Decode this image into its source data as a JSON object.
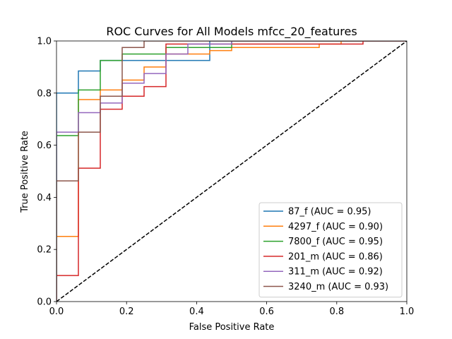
{
  "chart_data": {
    "type": "line",
    "title": "ROC Curves for All Models mfcc_20_features",
    "xlabel": "False Positive Rate",
    "ylabel": "True Positive Rate",
    "xlim": [
      0.0,
      1.0
    ],
    "ylim": [
      0.0,
      1.0
    ],
    "xticks": [
      "0.0",
      "0.2",
      "0.4",
      "0.6",
      "0.8",
      "1.0"
    ],
    "yticks": [
      "0.0",
      "0.2",
      "0.4",
      "0.6",
      "0.8",
      "1.0"
    ],
    "grid": false,
    "legend_position": "lower right",
    "series": [
      {
        "name": "87_f (AUC = 0.95)",
        "color": "#1f77b4",
        "x": [
          0.0,
          0.0,
          0.0625,
          0.0625,
          0.125,
          0.125,
          0.4375,
          0.4375,
          1.0
        ],
        "y": [
          0.0,
          0.8,
          0.8,
          0.885,
          0.885,
          0.925,
          0.925,
          1.0,
          1.0
        ]
      },
      {
        "name": "4297_f (AUC = 0.90)",
        "color": "#ff7f0e",
        "x": [
          0.0,
          0.0,
          0.0625,
          0.0625,
          0.125,
          0.125,
          0.1875,
          0.1875,
          0.25,
          0.25,
          0.3125,
          0.3125,
          0.4375,
          0.4375,
          0.5,
          0.5,
          0.75,
          0.75,
          0.8125,
          0.8125,
          1.0
        ],
        "y": [
          0.0,
          0.25,
          0.25,
          0.775,
          0.775,
          0.812,
          0.812,
          0.85,
          0.85,
          0.9,
          0.9,
          0.95,
          0.95,
          0.963,
          0.963,
          0.975,
          0.975,
          0.988,
          0.988,
          1.0,
          1.0
        ]
      },
      {
        "name": "7800_f (AUC = 0.95)",
        "color": "#2ca02c",
        "x": [
          0.0,
          0.0,
          0.0625,
          0.0625,
          0.125,
          0.125,
          0.1875,
          0.1875,
          0.3125,
          0.3125,
          0.5,
          0.5,
          1.0
        ],
        "y": [
          0.0,
          0.637,
          0.637,
          0.812,
          0.812,
          0.925,
          0.925,
          0.95,
          0.95,
          0.975,
          0.975,
          1.0,
          1.0
        ]
      },
      {
        "name": "201_m (AUC = 0.86)",
        "color": "#d62728",
        "x": [
          0.0,
          0.0,
          0.0625,
          0.0625,
          0.125,
          0.125,
          0.1875,
          0.1875,
          0.25,
          0.25,
          0.3125,
          0.3125,
          0.875,
          0.875,
          1.0
        ],
        "y": [
          0.0,
          0.1,
          0.1,
          0.512,
          0.512,
          0.738,
          0.738,
          0.788,
          0.788,
          0.825,
          0.825,
          0.988,
          0.988,
          1.0,
          1.0
        ]
      },
      {
        "name": "311_m (AUC = 0.92)",
        "color": "#9467bd",
        "x": [
          0.0,
          0.0,
          0.0625,
          0.0625,
          0.125,
          0.125,
          0.1875,
          0.1875,
          0.25,
          0.25,
          0.3125,
          0.3125,
          0.375,
          0.375,
          0.5,
          0.5,
          1.0
        ],
        "y": [
          0.0,
          0.65,
          0.65,
          0.725,
          0.725,
          0.762,
          0.762,
          0.838,
          0.838,
          0.875,
          0.875,
          0.95,
          0.95,
          0.988,
          0.988,
          1.0,
          1.0
        ]
      },
      {
        "name": "3240_m (AUC = 0.93)",
        "color": "#8c564b",
        "x": [
          0.0,
          0.0,
          0.0625,
          0.0625,
          0.125,
          0.125,
          0.1875,
          0.1875,
          0.25,
          0.25,
          1.0
        ],
        "y": [
          0.0,
          0.463,
          0.463,
          0.65,
          0.65,
          0.788,
          0.788,
          0.975,
          0.975,
          1.0,
          1.0
        ]
      }
    ],
    "reference_line": {
      "style": "dashed",
      "color": "#000000",
      "x": [
        0.0,
        1.0
      ],
      "y": [
        0.0,
        1.0
      ]
    }
  }
}
